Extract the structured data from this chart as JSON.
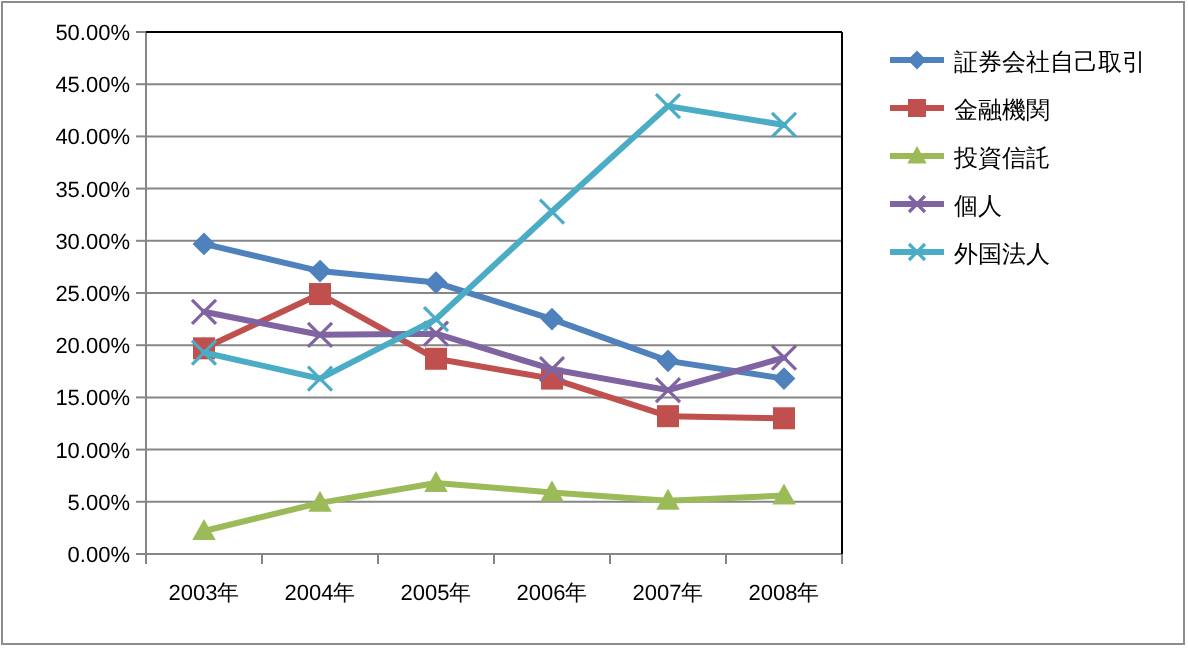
{
  "chart_data": {
    "type": "line",
    "categories": [
      "2003年",
      "2004年",
      "2005年",
      "2006年",
      "2007年",
      "2008年"
    ],
    "ylim": [
      0,
      50
    ],
    "yticks": [
      {
        "value": 0,
        "label": "0.00%"
      },
      {
        "value": 5,
        "label": "5.00%"
      },
      {
        "value": 10,
        "label": "10.00%"
      },
      {
        "value": 15,
        "label": "15.00%"
      },
      {
        "value": 20,
        "label": "20.00%"
      },
      {
        "value": 25,
        "label": "25.00%"
      },
      {
        "value": 30,
        "label": "30.00%"
      },
      {
        "value": 35,
        "label": "35.00%"
      },
      {
        "value": 40,
        "label": "40.00%"
      },
      {
        "value": 45,
        "label": "45.00%"
      },
      {
        "value": 50,
        "label": "50.00%"
      }
    ],
    "grid": "y",
    "legend": "right",
    "line_style": "solid",
    "series": [
      {
        "name": "証券会社自己取引",
        "color": "#4f81bd",
        "marker": "diamond",
        "values": [
          29.7,
          27.1,
          26.0,
          22.5,
          18.5,
          16.8
        ]
      },
      {
        "name": "金融機関",
        "color": "#c0504d",
        "marker": "square",
        "values": [
          19.7,
          24.9,
          18.7,
          16.8,
          13.2,
          13.0
        ]
      },
      {
        "name": "投資信託",
        "color": "#9bbb59",
        "marker": "triangle",
        "values": [
          2.2,
          4.9,
          6.8,
          5.9,
          5.1,
          5.6
        ]
      },
      {
        "name": "個人",
        "color": "#8064a2",
        "marker": "cross",
        "values": [
          23.2,
          21.0,
          21.1,
          17.7,
          15.7,
          18.8
        ]
      },
      {
        "name": "外国法人",
        "color": "#4bacc6",
        "marker": "cross",
        "values": [
          19.3,
          16.8,
          22.5,
          32.8,
          42.9,
          41.1
        ]
      }
    ]
  }
}
